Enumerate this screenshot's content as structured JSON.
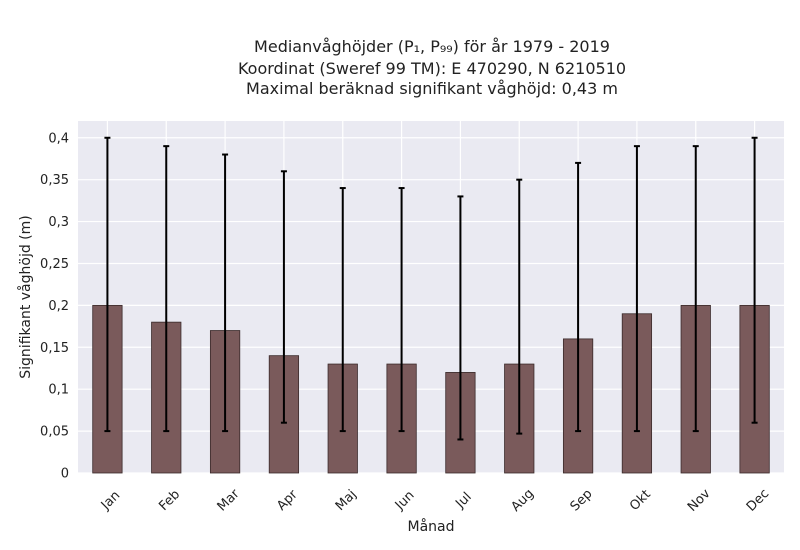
{
  "chart_data": {
    "type": "bar",
    "title_lines": [
      "Medianvåghöjder (P₁, P₉₉) för år 1979 - 2019",
      "Koordinat (Sweref 99 TM): E 470290, N 6210510",
      "Maximal beräknad signifikant våghöjd: 0,43 m"
    ],
    "xlabel": "Månad",
    "ylabel": "Signifikant våghöjd (m)",
    "categories": [
      "Jan",
      "Feb",
      "Mar",
      "Apr",
      "Maj",
      "Jun",
      "Jul",
      "Aug",
      "Sep",
      "Okt",
      "Nov",
      "Dec"
    ],
    "series": [
      {
        "values": [
          0.2,
          0.18,
          0.17,
          0.14,
          0.13,
          0.13,
          0.12,
          0.13,
          0.16,
          0.19,
          0.2,
          0.2
        ],
        "error_low": [
          0.05,
          0.05,
          0.05,
          0.06,
          0.05,
          0.05,
          0.04,
          0.047,
          0.05,
          0.05,
          0.05,
          0.06
        ],
        "error_high": [
          0.4,
          0.39,
          0.38,
          0.36,
          0.34,
          0.34,
          0.33,
          0.35,
          0.37,
          0.39,
          0.39,
          0.4
        ]
      }
    ],
    "ylim": [
      0,
      0.42
    ],
    "yticks": [
      0,
      0.05,
      0.1,
      0.15,
      0.2,
      0.25,
      0.3,
      0.35,
      0.4
    ],
    "ytick_labels": [
      "0",
      "0,05",
      "0,1",
      "0,15",
      "0,2",
      "0,25",
      "0,3",
      "0,35",
      "0,4"
    ],
    "grid": true,
    "colors": {
      "bar": "#7a5a5b",
      "bar_edge": "#3a2a2a",
      "error": "#000000",
      "background": "#eaeaf2",
      "grid": "#ffffff"
    }
  }
}
